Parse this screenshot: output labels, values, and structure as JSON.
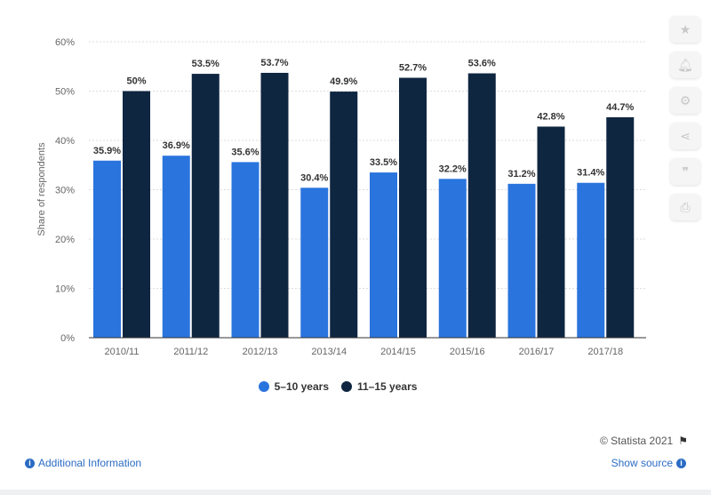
{
  "chart_data": {
    "type": "bar",
    "categories": [
      "2010/11",
      "2011/12",
      "2012/13",
      "2013/14",
      "2014/15",
      "2015/16",
      "2016/17",
      "2017/18"
    ],
    "series": [
      {
        "name": "5-10 years",
        "color": "#2a74de",
        "values": [
          35.9,
          36.9,
          35.6,
          30.4,
          33.5,
          32.2,
          31.2,
          31.4
        ],
        "labels": [
          "35.9%",
          "36.9%",
          "35.6%",
          "30.4%",
          "33.5%",
          "32.2%",
          "31.2%",
          "31.4%"
        ]
      },
      {
        "name": "11-15 years",
        "color": "#0f2641",
        "values": [
          50,
          53.5,
          53.7,
          49.9,
          52.7,
          53.6,
          42.8,
          44.7
        ],
        "labels": [
          "50%",
          "53.5%",
          "53.7%",
          "49.9%",
          "52.7%",
          "53.6%",
          "42.8%",
          "44.7%"
        ]
      }
    ],
    "ylabel": "Share of respondents",
    "ylim": [
      0,
      60
    ],
    "yticks": [
      "0%",
      "10%",
      "20%",
      "30%",
      "40%",
      "50%",
      "60%"
    ],
    "grid": true,
    "legend_position": "bottom"
  },
  "legend": {
    "item1": "5–10 years",
    "item2": "11–15 years",
    "color1": "#2a74de",
    "color2": "#0f2641"
  },
  "copyright": "© Statista 2021",
  "footer": {
    "additional_info": "Additional Information",
    "show_source": "Show source"
  },
  "toolbar": {
    "icons": [
      "star-icon",
      "bell-icon",
      "gear-icon",
      "share-icon",
      "quote-icon",
      "print-icon"
    ]
  }
}
